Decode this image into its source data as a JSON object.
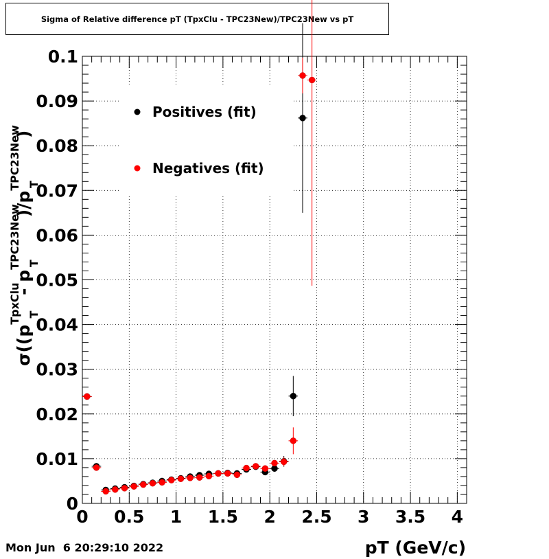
{
  "header": {
    "title": "Sigma of Relative difference pT (TpxClu - TPC23New)/TPC23New vs pT"
  },
  "footer": {
    "timestamp": "Mon Jun  6 20:29:10 2022"
  },
  "colors": {
    "positives": "#000000",
    "negatives": "#ff0000",
    "grid": "#000000",
    "background": "#ffffff"
  },
  "chart_data": {
    "type": "scatter",
    "title": "Sigma of Relative difference pT (TpxClu - TPC23New)/TPC23New vs pT",
    "xlabel": "pT (GeV/c)",
    "ylabel": "σ((pT^TpxClu - pT^TPC23New)/pT^TPC23New)",
    "ylabel_parts": {
      "sigma": "σ((",
      "p1": "p",
      "p1_sup": "TpxClu",
      "p1_sub": "T",
      "minus": " - ",
      "p2": "p",
      "p2_sup": "TPC23New",
      "p2_sub": "T",
      "mid": ")/",
      "p3": "p",
      "p3_sup": "TPC23New",
      "p3_sub": "T",
      "close": ")"
    },
    "xlim": [
      0,
      4.1
    ],
    "ylim": [
      0,
      0.1
    ],
    "x_ticks": [
      0,
      0.5,
      1,
      1.5,
      2,
      2.5,
      3,
      3.5,
      4
    ],
    "x_tick_labels": [
      "0",
      "0.5",
      "1",
      "1.5",
      "2",
      "2.5",
      "3",
      "3.5",
      "4"
    ],
    "y_ticks": [
      0,
      0.01,
      0.02,
      0.03,
      0.04,
      0.05,
      0.06,
      0.07,
      0.08,
      0.09,
      0.1
    ],
    "y_tick_labels": [
      "0",
      "0.01",
      "0.02",
      "0.03",
      "0.04",
      "0.05",
      "0.06",
      "0.07",
      "0.08",
      "0.09",
      "0.1"
    ],
    "grid": true,
    "legend_position": "top-left",
    "series": [
      {
        "name": "Positives (fit)",
        "color": "#000000",
        "points": [
          {
            "x": 0.05,
            "y": 0.0239,
            "yerr": 0.0003
          },
          {
            "x": 0.15,
            "y": 0.0083,
            "yerr": 0.0005
          },
          {
            "x": 0.25,
            "y": 0.003,
            "yerr": 0.0002
          },
          {
            "x": 0.35,
            "y": 0.0033,
            "yerr": 0.0002
          },
          {
            "x": 0.45,
            "y": 0.0036,
            "yerr": 0.0002
          },
          {
            "x": 0.55,
            "y": 0.0039,
            "yerr": 0.0002
          },
          {
            "x": 0.65,
            "y": 0.0043,
            "yerr": 0.0002
          },
          {
            "x": 0.75,
            "y": 0.0046,
            "yerr": 0.0002
          },
          {
            "x": 0.85,
            "y": 0.005,
            "yerr": 0.0002
          },
          {
            "x": 0.95,
            "y": 0.0053,
            "yerr": 0.0002
          },
          {
            "x": 1.05,
            "y": 0.0056,
            "yerr": 0.0002
          },
          {
            "x": 1.15,
            "y": 0.006,
            "yerr": 0.0002
          },
          {
            "x": 1.25,
            "y": 0.0063,
            "yerr": 0.0002
          },
          {
            "x": 1.35,
            "y": 0.0066,
            "yerr": 0.0002
          },
          {
            "x": 1.45,
            "y": 0.0067,
            "yerr": 0.0002
          },
          {
            "x": 1.55,
            "y": 0.0068,
            "yerr": 0.0002
          },
          {
            "x": 1.65,
            "y": 0.0067,
            "yerr": 0.0003
          },
          {
            "x": 1.75,
            "y": 0.0076,
            "yerr": 0.0003
          },
          {
            "x": 1.85,
            "y": 0.0082,
            "yerr": 0.0003
          },
          {
            "x": 1.95,
            "y": 0.007,
            "yerr": 0.0004
          },
          {
            "x": 2.05,
            "y": 0.0078,
            "yerr": 0.0005
          },
          {
            "x": 2.15,
            "y": 0.0094,
            "yerr": 0.0012
          },
          {
            "x": 2.25,
            "y": 0.024,
            "yerr": 0.0045
          },
          {
            "x": 2.35,
            "y": 0.0862,
            "yerr": 0.0212
          }
        ]
      },
      {
        "name": "Negatives (fit)",
        "color": "#ff0000",
        "points": [
          {
            "x": 0.05,
            "y": 0.0239,
            "yerr": 0.0003
          },
          {
            "x": 0.15,
            "y": 0.008,
            "yerr": 0.0005
          },
          {
            "x": 0.25,
            "y": 0.0027,
            "yerr": 0.0002
          },
          {
            "x": 0.35,
            "y": 0.0031,
            "yerr": 0.0002
          },
          {
            "x": 0.45,
            "y": 0.0034,
            "yerr": 0.0002
          },
          {
            "x": 0.55,
            "y": 0.0038,
            "yerr": 0.0002
          },
          {
            "x": 0.65,
            "y": 0.0042,
            "yerr": 0.0002
          },
          {
            "x": 0.75,
            "y": 0.0045,
            "yerr": 0.0002
          },
          {
            "x": 0.85,
            "y": 0.0047,
            "yerr": 0.0002
          },
          {
            "x": 0.95,
            "y": 0.0052,
            "yerr": 0.0002
          },
          {
            "x": 1.05,
            "y": 0.0055,
            "yerr": 0.0002
          },
          {
            "x": 1.15,
            "y": 0.0057,
            "yerr": 0.0002
          },
          {
            "x": 1.25,
            "y": 0.0058,
            "yerr": 0.0002
          },
          {
            "x": 1.35,
            "y": 0.0061,
            "yerr": 0.0002
          },
          {
            "x": 1.45,
            "y": 0.0067,
            "yerr": 0.0002
          },
          {
            "x": 1.55,
            "y": 0.0067,
            "yerr": 0.0002
          },
          {
            "x": 1.65,
            "y": 0.0064,
            "yerr": 0.0003
          },
          {
            "x": 1.75,
            "y": 0.0079,
            "yerr": 0.0003
          },
          {
            "x": 1.85,
            "y": 0.0083,
            "yerr": 0.0003
          },
          {
            "x": 1.95,
            "y": 0.0078,
            "yerr": 0.0004
          },
          {
            "x": 2.05,
            "y": 0.009,
            "yerr": 0.0006
          },
          {
            "x": 2.15,
            "y": 0.0093,
            "yerr": 0.001
          },
          {
            "x": 2.25,
            "y": 0.014,
            "yerr": 0.003
          },
          {
            "x": 2.35,
            "y": 0.0957,
            "yerr": 0.004
          },
          {
            "x": 2.45,
            "y": 0.0947,
            "yerr": 0.046
          }
        ]
      }
    ]
  }
}
